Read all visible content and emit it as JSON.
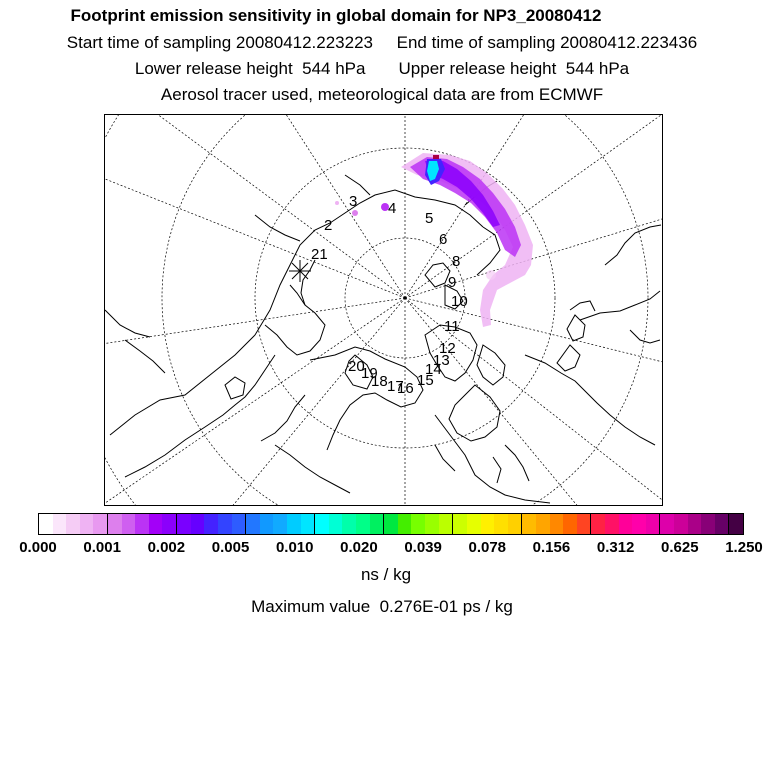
{
  "header": {
    "title": "Footprint emission sensitivity in global domain for NP3_20080412",
    "line1": "Start time of sampling 20080412.223223     End time of sampling 20080412.223436",
    "line2": "Lower release height  544 hPa       Upper release height  544 hPa",
    "line3": "Aerosol tracer used, meteorological data are from ECMWF"
  },
  "colorbar": {
    "colors": [
      "#ffffff",
      "#fbe6fb",
      "#f5ccf5",
      "#efb3f3",
      "#e899f0",
      "#dd7fed",
      "#cf5ff0",
      "#bb33f5",
      "#a300f8",
      "#8b00fb",
      "#7a00ff",
      "#6600ff",
      "#4422ff",
      "#3344ff",
      "#2e5cff",
      "#2277ff",
      "#1199ff",
      "#11aaff",
      "#00ccff",
      "#00e5ff",
      "#00ffff",
      "#00ffd5",
      "#00ffaa",
      "#00ff88",
      "#00f060",
      "#00e840",
      "#44ee00",
      "#77ff00",
      "#99ff00",
      "#bbff00",
      "#ccff00",
      "#e6ff00",
      "#fff000",
      "#ffe000",
      "#ffd000",
      "#ffbb00",
      "#ffa500",
      "#ff8800",
      "#ff6600",
      "#ff4422",
      "#ff2244",
      "#ff1166",
      "#ff0099",
      "#ff00aa",
      "#ee00aa",
      "#dd00aa",
      "#cc0099",
      "#aa0088",
      "#880077",
      "#660066",
      "#440044"
    ],
    "ticks": [
      "0.000",
      "0.001",
      "0.002",
      "0.005",
      "0.010",
      "0.020",
      "0.039",
      "0.078",
      "0.156",
      "0.312",
      "0.625",
      "1.250"
    ]
  },
  "unit_label": "ns / kg",
  "max_value_label": "Maximum value  0.276E-01 ps / kg",
  "trajectory_labels": [
    "2",
    "3",
    "4",
    "5",
    "6",
    "8",
    "9",
    "10",
    "11",
    "12",
    "13",
    "14",
    "15",
    "16",
    "17",
    "18",
    "19",
    "20",
    "21"
  ]
}
